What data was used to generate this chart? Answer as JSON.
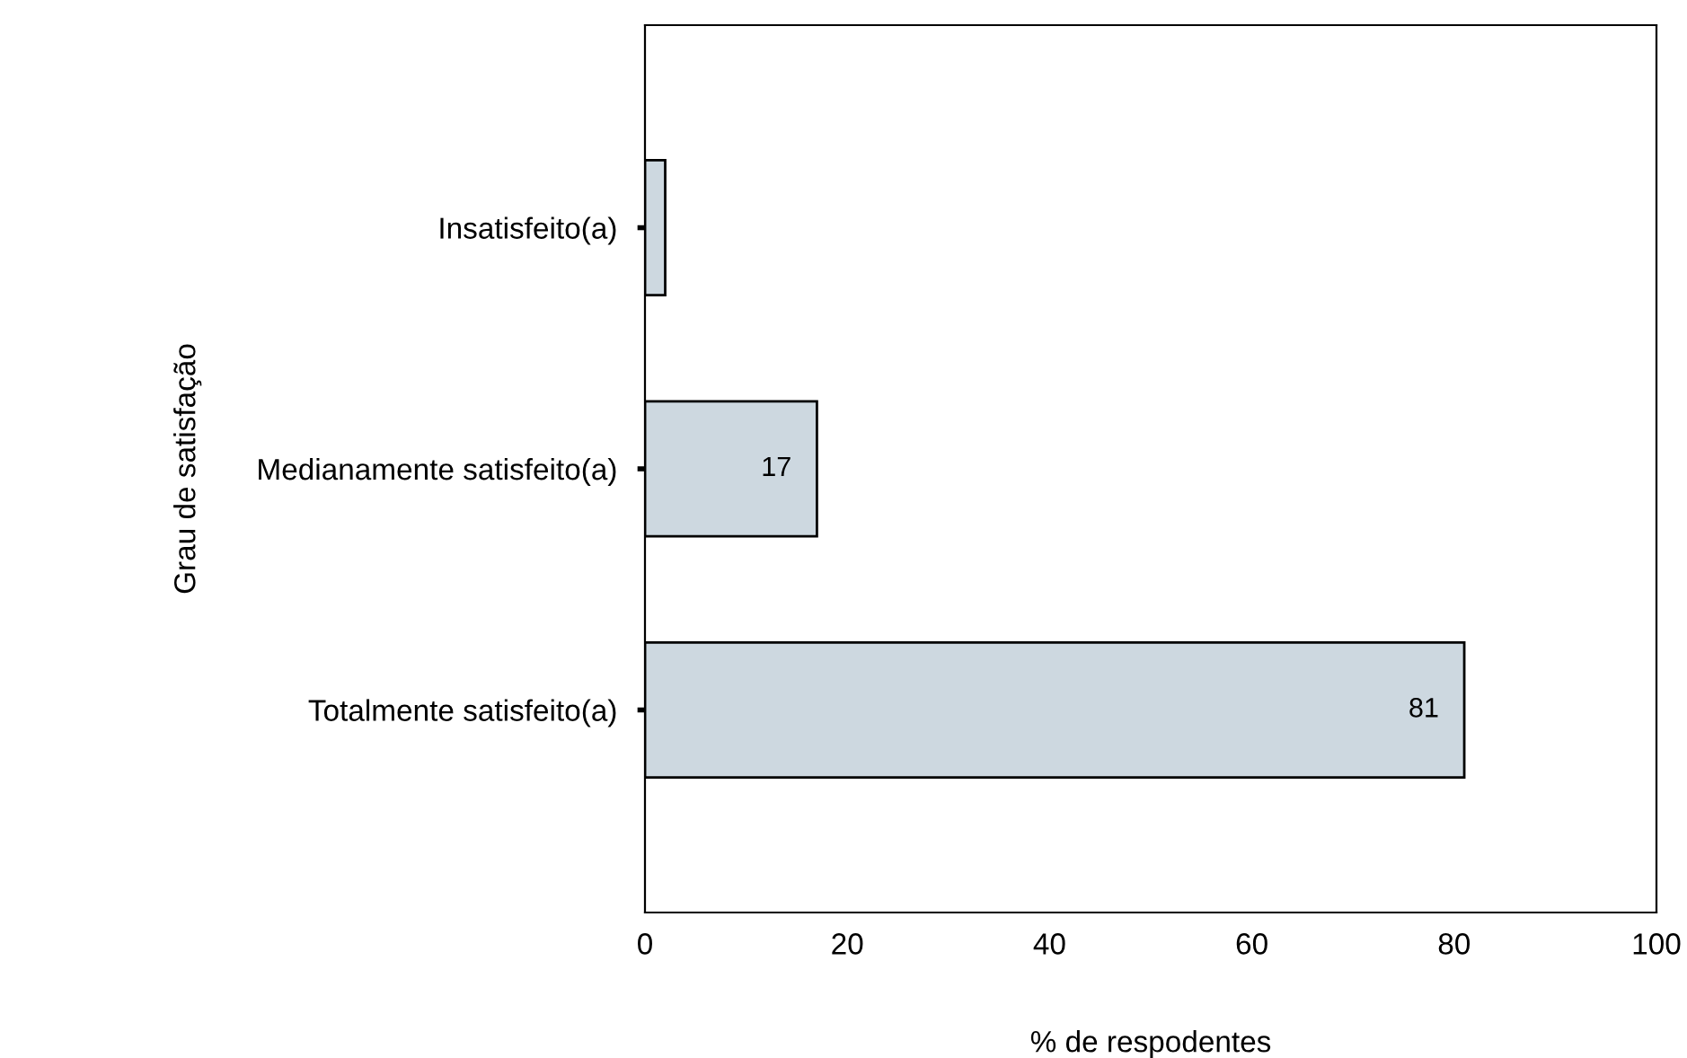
{
  "chart_data": {
    "type": "bar",
    "orientation": "horizontal",
    "ylabel": "Grau de satisfação",
    "xlabel": "% de respodentes",
    "categories": [
      "Insatisfeito(a)",
      "Medianamente satisfeito(a)",
      "Totalmente satisfeito(a)"
    ],
    "values": [
      2,
      17,
      81
    ],
    "value_labels": [
      null,
      "17",
      "81"
    ],
    "color": "#cdd8e0",
    "xlim": [
      0,
      100
    ],
    "xticks": [
      0,
      20,
      40,
      60,
      80,
      100
    ],
    "grid": false,
    "legend": false
  }
}
